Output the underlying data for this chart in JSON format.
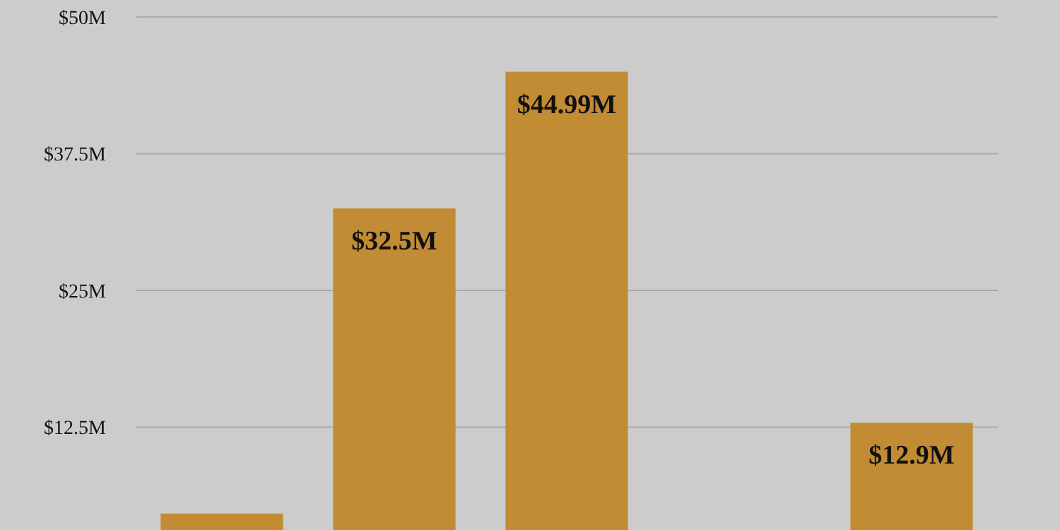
{
  "chart_data": {
    "type": "bar",
    "categories": [
      null,
      null,
      null,
      null,
      null
    ],
    "values": [
      4.6,
      32.5,
      44.99,
      null,
      12.9
    ],
    "value_labels": [
      null,
      "$32.5M",
      "$44.99M",
      null,
      "$12.9M"
    ],
    "color": "#c28c34",
    "ylim": [
      3.1,
      50
    ],
    "yticks": [
      {
        "value": 12.5,
        "label": "$12.5M"
      },
      {
        "value": 25,
        "label": "$25M"
      },
      {
        "value": 37.5,
        "label": "$37.5M"
      },
      {
        "value": 50,
        "label": "$50M"
      }
    ],
    "grid": "y"
  }
}
